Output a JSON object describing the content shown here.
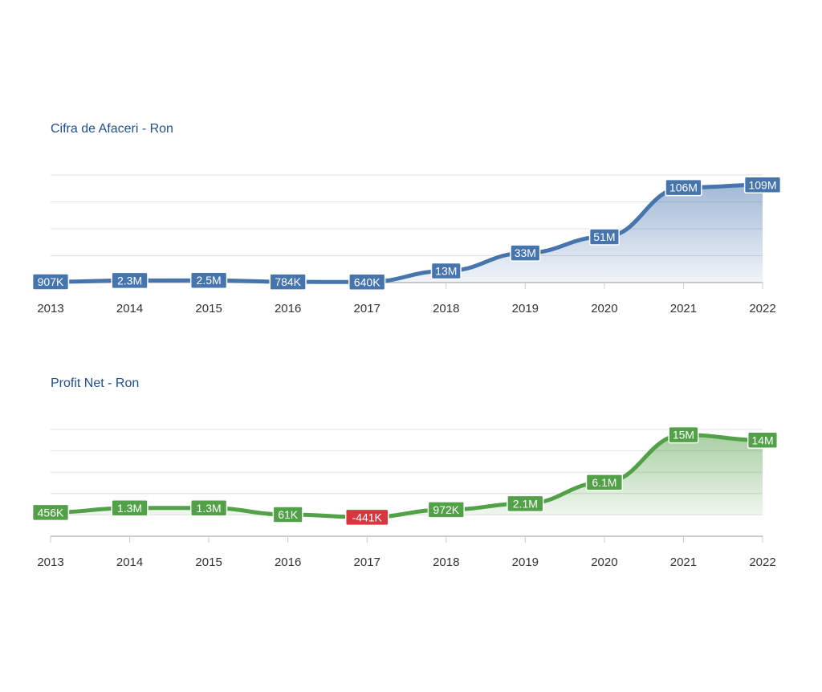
{
  "chart_data": [
    {
      "type": "area",
      "title": "Cifra de Afaceri - Ron",
      "categories": [
        "2013",
        "2014",
        "2015",
        "2016",
        "2017",
        "2018",
        "2019",
        "2020",
        "2021",
        "2022"
      ],
      "values": [
        907000,
        2300000,
        2500000,
        784000,
        640000,
        13000000,
        33000000,
        51000000,
        106000000,
        109000000
      ],
      "data_labels": [
        "907K",
        "2.3M",
        "2.5M",
        "784K",
        "640K",
        "13M",
        "33M",
        "51M",
        "106M",
        "109M"
      ],
      "ylim": [
        0,
        120000000
      ],
      "grid": true,
      "colors": {
        "line": "#4674ad",
        "fill": "#4674ad",
        "label_bg": "#4674ad"
      }
    },
    {
      "type": "area",
      "title": "Profit Net - Ron",
      "categories": [
        "2013",
        "2014",
        "2015",
        "2016",
        "2017",
        "2018",
        "2019",
        "2020",
        "2021",
        "2022"
      ],
      "values": [
        456000,
        1300000,
        1300000,
        61000,
        -441000,
        972000,
        2100000,
        6100000,
        15000000,
        14000000
      ],
      "data_labels": [
        "456K",
        "1.3M",
        "1.3M",
        "61K",
        "-441K",
        "972K",
        "2.1M",
        "6.1M",
        "15M",
        "14M"
      ],
      "ylim": [
        -4000000,
        16000000
      ],
      "grid": true,
      "colors": {
        "line": "#52a047",
        "fill": "#52a047",
        "label_bg": "#52a047",
        "negative_label_bg": "#d9363e"
      }
    }
  ]
}
